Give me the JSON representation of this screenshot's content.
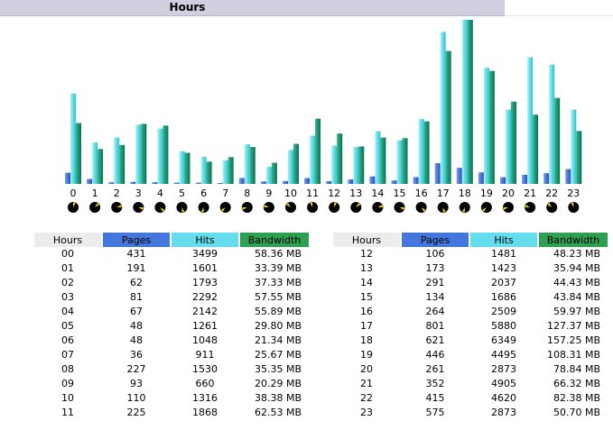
{
  "header": {
    "title": "Hours"
  },
  "colors": {
    "pages": "#4477dd",
    "hits": "#66ddee",
    "bandwidth": "#2ea052",
    "header_bg": "#cfcfe0"
  },
  "icons": {
    "clock": "clock-icon"
  },
  "table": {
    "headers": {
      "hours": "Hours",
      "pages": "Pages",
      "hits": "Hits",
      "bandwidth": "Bandwidth"
    }
  },
  "chart_data": {
    "type": "bar",
    "categories": [
      "0",
      "1",
      "2",
      "3",
      "4",
      "5",
      "6",
      "7",
      "8",
      "9",
      "10",
      "11",
      "12",
      "13",
      "14",
      "15",
      "16",
      "17",
      "18",
      "19",
      "20",
      "21",
      "22",
      "23"
    ],
    "series": [
      {
        "name": "Pages",
        "values": [
          431,
          191,
          62,
          81,
          67,
          48,
          48,
          36,
          227,
          93,
          110,
          225,
          106,
          173,
          291,
          134,
          264,
          801,
          621,
          446,
          261,
          352,
          415,
          575
        ]
      },
      {
        "name": "Hits",
        "values": [
          3499,
          1601,
          1793,
          2292,
          2142,
          1261,
          1048,
          911,
          1530,
          660,
          1316,
          1868,
          1481,
          1423,
          2037,
          1686,
          2509,
          5880,
          6349,
          4495,
          2873,
          4905,
          4620,
          2873
        ]
      },
      {
        "name": "Bandwidth",
        "values": [
          58.36,
          33.39,
          37.33,
          57.55,
          55.89,
          29.8,
          21.34,
          25.67,
          35.35,
          20.29,
          38.38,
          62.53,
          48.23,
          35.94,
          44.43,
          43.84,
          59.97,
          127.37,
          157.25,
          108.31,
          78.84,
          66.32,
          82.38,
          50.7
        ]
      }
    ],
    "title": "Hours",
    "xlabel": "",
    "ylabel": ""
  },
  "rows_left": [
    {
      "hour": "00",
      "pages": "431",
      "hits": "3499",
      "bandwidth": "58.36 MB"
    },
    {
      "hour": "01",
      "pages": "191",
      "hits": "1601",
      "bandwidth": "33.39 MB"
    },
    {
      "hour": "02",
      "pages": "62",
      "hits": "1793",
      "bandwidth": "37.33 MB"
    },
    {
      "hour": "03",
      "pages": "81",
      "hits": "2292",
      "bandwidth": "57.55 MB"
    },
    {
      "hour": "04",
      "pages": "67",
      "hits": "2142",
      "bandwidth": "55.89 MB"
    },
    {
      "hour": "05",
      "pages": "48",
      "hits": "1261",
      "bandwidth": "29.80 MB"
    },
    {
      "hour": "06",
      "pages": "48",
      "hits": "1048",
      "bandwidth": "21.34 MB"
    },
    {
      "hour": "07",
      "pages": "36",
      "hits": "911",
      "bandwidth": "25.67 MB"
    },
    {
      "hour": "08",
      "pages": "227",
      "hits": "1530",
      "bandwidth": "35.35 MB"
    },
    {
      "hour": "09",
      "pages": "93",
      "hits": "660",
      "bandwidth": "20.29 MB"
    },
    {
      "hour": "10",
      "pages": "110",
      "hits": "1316",
      "bandwidth": "38.38 MB"
    },
    {
      "hour": "11",
      "pages": "225",
      "hits": "1868",
      "bandwidth": "62.53 MB"
    }
  ],
  "rows_right": [
    {
      "hour": "12",
      "pages": "106",
      "hits": "1481",
      "bandwidth": "48.23 MB"
    },
    {
      "hour": "13",
      "pages": "173",
      "hits": "1423",
      "bandwidth": "35.94 MB"
    },
    {
      "hour": "14",
      "pages": "291",
      "hits": "2037",
      "bandwidth": "44.43 MB"
    },
    {
      "hour": "15",
      "pages": "134",
      "hits": "1686",
      "bandwidth": "43.84 MB"
    },
    {
      "hour": "16",
      "pages": "264",
      "hits": "2509",
      "bandwidth": "59.97 MB"
    },
    {
      "hour": "17",
      "pages": "801",
      "hits": "5880",
      "bandwidth": "127.37 MB"
    },
    {
      "hour": "18",
      "pages": "621",
      "hits": "6349",
      "bandwidth": "157.25 MB"
    },
    {
      "hour": "19",
      "pages": "446",
      "hits": "4495",
      "bandwidth": "108.31 MB"
    },
    {
      "hour": "20",
      "pages": "261",
      "hits": "2873",
      "bandwidth": "78.84 MB"
    },
    {
      "hour": "21",
      "pages": "352",
      "hits": "4905",
      "bandwidth": "66.32 MB"
    },
    {
      "hour": "22",
      "pages": "415",
      "hits": "4620",
      "bandwidth": "82.38 MB"
    },
    {
      "hour": "23",
      "pages": "575",
      "hits": "2873",
      "bandwidth": "50.70 MB"
    }
  ]
}
